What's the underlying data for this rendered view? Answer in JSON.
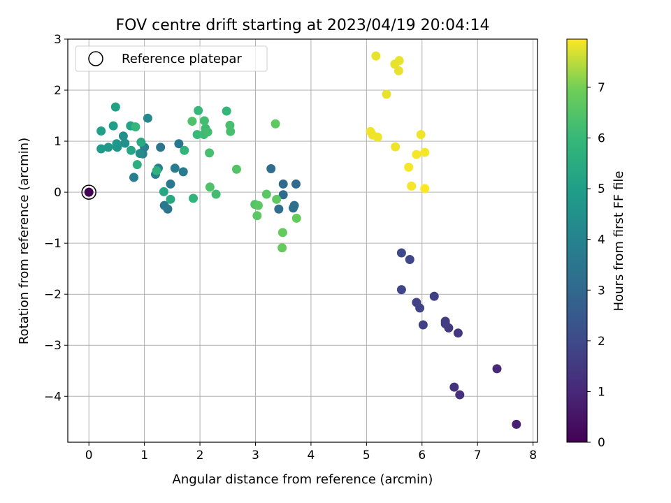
{
  "chart_data": {
    "type": "scatter",
    "title": "FOV centre drift starting at 2023/04/19 20:04:14",
    "xlabel": "Angular distance from reference (arcmin)",
    "ylabel": "Rotation from reference (arcmin)",
    "xlim": [
      -0.38,
      8.08
    ],
    "ylim": [
      -4.9,
      3.0
    ],
    "x_ticks": [
      0,
      1,
      2,
      3,
      4,
      5,
      6,
      7,
      8
    ],
    "y_ticks": [
      3,
      2,
      1,
      0,
      -1,
      -2,
      -3,
      -4
    ],
    "x_tick_labels": [
      "0",
      "1",
      "2",
      "3",
      "4",
      "5",
      "6",
      "7",
      "8"
    ],
    "y_tick_labels": [
      "3",
      "2",
      "1",
      "0",
      "−1",
      "−2",
      "−3",
      "−4"
    ],
    "grid": true,
    "legend": {
      "position": "top-left",
      "label": "Reference platepar"
    },
    "reference_point": {
      "x": 0,
      "y": 0,
      "hours": 0
    },
    "colorbar": {
      "label": "Hours from first FF file",
      "colormap": "viridis",
      "vmin": 0,
      "vmax": 7.95,
      "ticks": [
        0,
        1,
        2,
        3,
        4,
        5,
        6,
        7
      ],
      "tick_labels": [
        "0",
        "1",
        "2",
        "3",
        "4",
        "5",
        "6",
        "7"
      ]
    },
    "points": [
      {
        "x": 0.0,
        "y": 0.0,
        "hours": 0.0
      },
      {
        "x": 7.7,
        "y": -4.55,
        "hours": 0.8
      },
      {
        "x": 7.35,
        "y": -3.46,
        "hours": 1.0
      },
      {
        "x": 6.68,
        "y": -3.97,
        "hours": 1.2
      },
      {
        "x": 6.58,
        "y": -3.82,
        "hours": 1.3
      },
      {
        "x": 6.65,
        "y": -2.76,
        "hours": 1.4
      },
      {
        "x": 6.48,
        "y": -2.66,
        "hours": 1.5
      },
      {
        "x": 6.42,
        "y": -2.58,
        "hours": 1.6
      },
      {
        "x": 6.42,
        "y": -2.53,
        "hours": 1.6
      },
      {
        "x": 6.22,
        "y": -2.04,
        "hours": 1.7
      },
      {
        "x": 6.02,
        "y": -2.6,
        "hours": 1.7
      },
      {
        "x": 5.96,
        "y": -2.27,
        "hours": 1.8
      },
      {
        "x": 5.9,
        "y": -2.16,
        "hours": 1.8
      },
      {
        "x": 5.63,
        "y": -1.91,
        "hours": 1.9
      },
      {
        "x": 5.78,
        "y": -1.32,
        "hours": 1.9
      },
      {
        "x": 5.63,
        "y": -1.19,
        "hours": 2.0
      },
      {
        "x": 3.73,
        "y": 0.16,
        "hours": 3.0
      },
      {
        "x": 3.5,
        "y": 0.16,
        "hours": 3.1
      },
      {
        "x": 3.5,
        "y": -0.05,
        "hours": 3.1
      },
      {
        "x": 3.42,
        "y": -0.33,
        "hours": 3.2
      },
      {
        "x": 3.28,
        "y": 0.46,
        "hours": 3.2
      },
      {
        "x": 3.7,
        "y": -0.26,
        "hours": 3.3
      },
      {
        "x": 3.68,
        "y": -0.31,
        "hours": 3.3
      },
      {
        "x": 1.29,
        "y": 0.88,
        "hours": 3.5
      },
      {
        "x": 1.62,
        "y": 0.95,
        "hours": 3.5
      },
      {
        "x": 1.42,
        "y": -0.33,
        "hours": 3.5
      },
      {
        "x": 1.36,
        "y": -0.26,
        "hours": 3.6
      },
      {
        "x": 1.47,
        "y": 0.16,
        "hours": 3.6
      },
      {
        "x": 1.55,
        "y": 0.47,
        "hours": 3.7
      },
      {
        "x": 1.7,
        "y": 0.4,
        "hours": 3.7
      },
      {
        "x": 0.81,
        "y": 0.29,
        "hours": 3.8
      },
      {
        "x": 1.2,
        "y": 0.35,
        "hours": 3.8
      },
      {
        "x": 1.25,
        "y": 0.47,
        "hours": 3.9
      },
      {
        "x": 0.97,
        "y": 0.75,
        "hours": 4.0
      },
      {
        "x": 1.0,
        "y": 0.88,
        "hours": 4.0
      },
      {
        "x": 1.06,
        "y": 1.45,
        "hours": 4.2
      },
      {
        "x": 0.92,
        "y": 0.76,
        "hours": 4.3
      },
      {
        "x": 0.62,
        "y": 1.1,
        "hours": 4.4
      },
      {
        "x": 0.65,
        "y": 0.96,
        "hours": 4.5
      },
      {
        "x": 0.51,
        "y": 0.88,
        "hours": 4.6
      },
      {
        "x": 0.5,
        "y": 0.95,
        "hours": 4.7
      },
      {
        "x": 0.35,
        "y": 0.88,
        "hours": 4.8
      },
      {
        "x": 0.22,
        "y": 0.85,
        "hours": 4.9
      },
      {
        "x": 0.22,
        "y": 1.2,
        "hours": 5.0
      },
      {
        "x": 0.44,
        "y": 1.3,
        "hours": 5.0
      },
      {
        "x": 0.48,
        "y": 1.67,
        "hours": 5.1
      },
      {
        "x": 0.75,
        "y": 1.3,
        "hours": 5.2
      },
      {
        "x": 0.76,
        "y": 0.82,
        "hours": 5.3
      },
      {
        "x": 0.94,
        "y": 0.98,
        "hours": 5.4
      },
      {
        "x": 1.35,
        "y": 0.01,
        "hours": 5.3
      },
      {
        "x": 1.47,
        "y": -0.14,
        "hours": 5.4
      },
      {
        "x": 0.87,
        "y": 0.54,
        "hours": 5.6
      },
      {
        "x": 1.22,
        "y": 0.42,
        "hours": 5.7
      },
      {
        "x": 1.72,
        "y": 0.82,
        "hours": 5.8
      },
      {
        "x": 1.88,
        "y": -0.12,
        "hours": 5.8
      },
      {
        "x": 0.84,
        "y": 1.28,
        "hours": 5.9
      },
      {
        "x": 2.48,
        "y": 1.59,
        "hours": 5.9
      },
      {
        "x": 1.97,
        "y": 1.6,
        "hours": 6.0
      },
      {
        "x": 1.95,
        "y": 1.13,
        "hours": 6.0
      },
      {
        "x": 2.07,
        "y": 1.13,
        "hours": 6.1
      },
      {
        "x": 2.1,
        "y": 1.25,
        "hours": 6.1
      },
      {
        "x": 2.14,
        "y": 1.18,
        "hours": 6.2
      },
      {
        "x": 2.08,
        "y": 1.4,
        "hours": 6.2
      },
      {
        "x": 2.29,
        "y": -0.04,
        "hours": 6.2
      },
      {
        "x": 2.17,
        "y": 0.77,
        "hours": 6.3
      },
      {
        "x": 2.54,
        "y": 1.31,
        "hours": 6.3
      },
      {
        "x": 2.55,
        "y": 1.19,
        "hours": 6.3
      },
      {
        "x": 2.18,
        "y": 0.1,
        "hours": 6.4
      },
      {
        "x": 1.86,
        "y": 1.39,
        "hours": 6.4
      },
      {
        "x": 2.66,
        "y": 0.45,
        "hours": 6.5
      },
      {
        "x": 2.99,
        "y": -0.24,
        "hours": 6.5
      },
      {
        "x": 3.03,
        "y": -0.46,
        "hours": 6.6
      },
      {
        "x": 3.05,
        "y": -0.26,
        "hours": 6.6
      },
      {
        "x": 3.2,
        "y": -0.04,
        "hours": 6.6
      },
      {
        "x": 3.36,
        "y": 1.34,
        "hours": 6.7
      },
      {
        "x": 3.38,
        "y": -0.14,
        "hours": 6.7
      },
      {
        "x": 3.49,
        "y": -0.79,
        "hours": 6.8
      },
      {
        "x": 3.48,
        "y": -1.09,
        "hours": 6.8
      },
      {
        "x": 3.74,
        "y": -0.51,
        "hours": 6.8
      },
      {
        "x": 5.17,
        "y": 2.67,
        "hours": 7.8
      },
      {
        "x": 5.59,
        "y": 2.58,
        "hours": 7.8
      },
      {
        "x": 5.51,
        "y": 2.51,
        "hours": 7.8
      },
      {
        "x": 5.58,
        "y": 2.38,
        "hours": 7.8
      },
      {
        "x": 5.36,
        "y": 1.92,
        "hours": 7.8
      },
      {
        "x": 5.07,
        "y": 1.19,
        "hours": 7.85
      },
      {
        "x": 5.11,
        "y": 1.12,
        "hours": 7.85
      },
      {
        "x": 5.2,
        "y": 1.08,
        "hours": 7.85
      },
      {
        "x": 5.98,
        "y": 1.13,
        "hours": 7.85
      },
      {
        "x": 5.52,
        "y": 0.89,
        "hours": 7.85
      },
      {
        "x": 5.9,
        "y": 0.74,
        "hours": 7.9
      },
      {
        "x": 6.05,
        "y": 0.78,
        "hours": 7.9
      },
      {
        "x": 5.76,
        "y": 0.49,
        "hours": 7.9
      },
      {
        "x": 5.81,
        "y": 0.12,
        "hours": 7.9
      },
      {
        "x": 6.05,
        "y": 0.07,
        "hours": 7.95
      }
    ]
  }
}
